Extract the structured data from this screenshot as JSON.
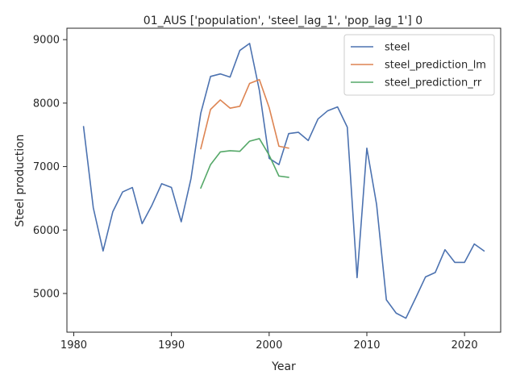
{
  "chart_data": {
    "type": "line",
    "title": "01_AUS ['population', 'steel_lag_1', 'pop_lag_1'] 0",
    "xlabel": "Year",
    "ylabel": "Steel production",
    "xlim": [
      1979.3,
      2023.7
    ],
    "ylim": [
      4390,
      9180
    ],
    "xticks": [
      1980,
      1990,
      2000,
      2010,
      2020
    ],
    "yticks": [
      5000,
      6000,
      7000,
      8000,
      9000
    ],
    "grid": false,
    "legend_position": "top-right",
    "series": [
      {
        "name": "steel",
        "color": "#4c72b0",
        "x": [
          1981,
          1982,
          1983,
          1984,
          1985,
          1986,
          1987,
          1988,
          1989,
          1990,
          1991,
          1992,
          1993,
          1994,
          1995,
          1996,
          1997,
          1998,
          1999,
          2000,
          2001,
          2002,
          2003,
          2004,
          2005,
          2006,
          2007,
          2008,
          2009,
          2010,
          2011,
          2012,
          2013,
          2014,
          2015,
          2016,
          2017,
          2018,
          2019,
          2020,
          2021,
          2022
        ],
        "y": [
          7630,
          6350,
          5670,
          6290,
          6600,
          6670,
          6100,
          6390,
          6730,
          6670,
          6130,
          6810,
          7840,
          8420,
          8460,
          8410,
          8830,
          8940,
          8200,
          7130,
          7030,
          7520,
          7540,
          7410,
          7750,
          7880,
          7940,
          7620,
          5250,
          7290,
          6400,
          4900,
          4690,
          4610,
          4930,
          5260,
          5330,
          5690,
          5490,
          5490,
          5780,
          5670
        ]
      },
      {
        "name": "steel_prediction_lm",
        "color": "#dd8452",
        "x": [
          1993,
          1994,
          1995,
          1996,
          1997,
          1998,
          1999,
          2000,
          2001,
          2002
        ],
        "y": [
          7280,
          7900,
          8050,
          7920,
          7950,
          8310,
          8370,
          7930,
          7320,
          7290
        ]
      },
      {
        "name": "steel_prediction_rr",
        "color": "#55a868",
        "x": [
          1993,
          1994,
          1995,
          1996,
          1997,
          1998,
          1999,
          2000,
          2001,
          2002
        ],
        "y": [
          6660,
          7030,
          7230,
          7250,
          7240,
          7400,
          7440,
          7180,
          6850,
          6830
        ]
      }
    ]
  }
}
